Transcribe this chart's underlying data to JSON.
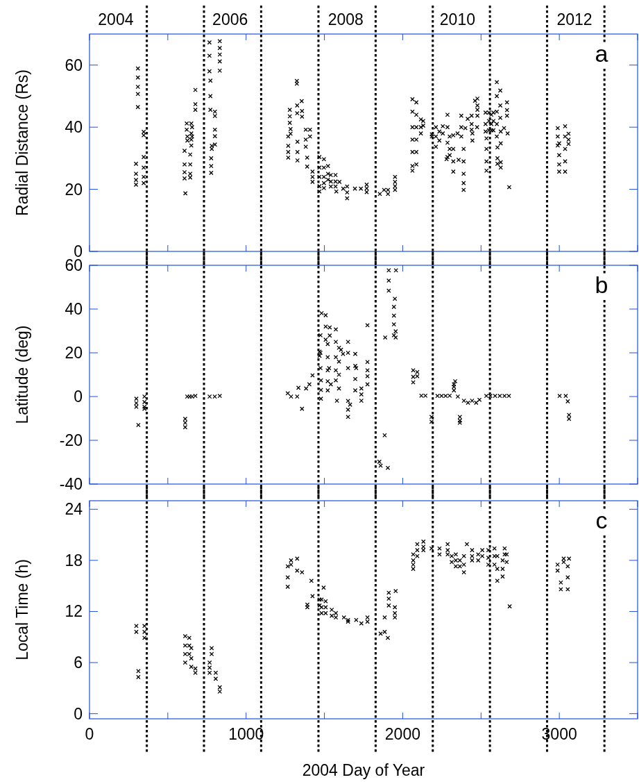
{
  "chart_data": [
    {
      "type": "scatter",
      "ylabel": "Radial Distance (Rs)",
      "xlim": [
        0,
        3500
      ],
      "xticks": [
        0,
        {
          "value": 500,
          "label": null
        },
        1000,
        {
          "value": 1500,
          "label": null
        },
        2000,
        {
          "value": 2500,
          "label": null
        },
        3000,
        {
          "value": 3500,
          "label": null
        }
      ],
      "x2lim": [
        "2004-01-01",
        "2013-08-01"
      ],
      "x2ticks": [
        {
          "value": "2004-06-17",
          "label": "2004"
        },
        {
          "value": "2006-06-17",
          "label": "2006"
        },
        {
          "value": "2008-06-24",
          "label": "2008"
        },
        {
          "value": "2010-06-08",
          "label": "2010"
        },
        {
          "value": "2012-06-24",
          "label": "2012"
        }
      ],
      "ylim": [
        0,
        70
      ],
      "yticks": [
        0,
        20,
        40,
        60
      ],
      "tick_labels": "y",
      "marker": "cross",
      "annotations": [
        "a"
      ],
      "ref_lines": [
        {
          "axis": "x",
          "value": 366,
          "line_style": "dotted",
          "color": "#000000"
        },
        {
          "axis": "x",
          "value": 731,
          "line_style": "dotted",
          "color": "#000000"
        },
        {
          "axis": "x",
          "value": 1096,
          "line_style": "dotted",
          "color": "#000000"
        },
        {
          "axis": "x",
          "value": 1462,
          "line_style": "dotted",
          "color": "#000000"
        },
        {
          "axis": "x",
          "value": 1827,
          "line_style": "dotted",
          "color": "#000000"
        },
        {
          "axis": "x",
          "value": 2192,
          "line_style": "dotted",
          "color": "#000000"
        },
        {
          "axis": "x",
          "value": 2557,
          "line_style": "dotted",
          "color": "#000000"
        },
        {
          "axis": "x",
          "value": 2922,
          "line_style": "dotted",
          "color": "#000000"
        },
        {
          "axis": "x",
          "value": 3288,
          "line_style": "dotted",
          "color": "#000000"
        }
      ],
      "series": [
        {
          "color": "#000000",
          "x": [
            309,
            309,
            309,
            309,
            309,
            297,
            297,
            297,
            297,
            346,
            346,
            346,
            346,
            346,
            346,
            612,
            607,
            607,
            607,
            607,
            621,
            621,
            625,
            625,
            643,
            643,
            643,
            643,
            650,
            650,
            650,
            650,
            655,
            655,
            676,
            676,
            676,
            766,
            766,
            766,
            772,
            772,
            772,
            777,
            777,
            777,
            781,
            781,
            801,
            801,
            801,
            801,
            801,
            832,
            832,
            832,
            832,
            832,
            1269,
            1269,
            1269,
            1269,
            1279,
            1279,
            1279,
            1284,
            1284,
            1324,
            1324,
            1328,
            1328,
            1328,
            1326,
            1326,
            1355,
            1357,
            1357,
            1381,
            1381,
            1381,
            1390,
            1390,
            1408,
            1408,
            1424,
            1424,
            1424,
            1468,
            1468,
            1468,
            1468,
            1468,
            1497,
            1497,
            1497,
            1497,
            1497,
            1523,
            1523,
            1523,
            1541,
            1541,
            1541,
            1571,
            1571,
            1571,
            1576,
            1596,
            1620,
            1645,
            1645,
            1645,
            1695,
            1733,
            1770,
            1770,
            1770,
            1854,
            1881,
            1906,
            1906,
            1951,
            1951,
            1951,
            1951,
            2062,
            2062,
            2062,
            2062,
            2062,
            2062,
            2062,
            2087,
            2087,
            2087,
            2087,
            2087,
            2087,
            2116,
            2116,
            2116,
            2131,
            2131,
            2186,
            2186,
            2212,
            2212,
            2212,
            2234,
            2234,
            2256,
            2256,
            2286,
            2286,
            2286,
            2286,
            2280,
            2300,
            2300,
            2300,
            2323,
            2323,
            2323,
            2323,
            2357,
            2350,
            2374,
            2374,
            2374,
            2389,
            2389,
            2389,
            2389,
            2389,
            2400,
            2415,
            2440,
            2440,
            2440,
            2445,
            2445,
            2462,
            2477,
            2477,
            2477,
            2477,
            2475,
            2529,
            2529,
            2529,
            2535,
            2535,
            2535,
            2535,
            2551,
            2551,
            2551,
            2566,
            2566,
            2566,
            2579,
            2579,
            2579,
            2601,
            2601,
            2601,
            2601,
            2601,
            2605,
            2605,
            2605,
            2623,
            2623,
            2623,
            2626,
            2626,
            2626,
            2626,
            2647,
            2666,
            2666,
            2666,
            2670,
            2680,
            2990,
            2990,
            2990,
            2999,
            2999,
            2999,
            2999,
            3037,
            3037,
            3037,
            3037,
            3037,
            3059,
            3059,
            3059
          ],
          "values": [
            58.9,
            56,
            53,
            50.7,
            46.5,
            28.2,
            25,
            23,
            21.5,
            38.5,
            37.4,
            30.4,
            27,
            24,
            22,
            18.7,
            32.4,
            28,
            25.5,
            23.5,
            41.2,
            39.2,
            37,
            35.7,
            31.2,
            28,
            25,
            23.8,
            41.2,
            38,
            36,
            34.1,
            40,
            37,
            52,
            47.4,
            45.6,
            67.3,
            63,
            58,
            55,
            50,
            45.6,
            30,
            27.5,
            25.3,
            34,
            33,
            45,
            43.6,
            39.2,
            37.1,
            34.4,
            67.7,
            65.5,
            63.4,
            61.2,
            58.2,
            37,
            34,
            32,
            30.2,
            45.6,
            43.5,
            41.4,
            39.4,
            37.9,
            54.9,
            54,
            35.3,
            32,
            29.3,
            47,
            44.5,
            48.4,
            45.2,
            43.4,
            39.2,
            36,
            33.7,
            30.2,
            27.3,
            39.2,
            37,
            25.7,
            24,
            22.4,
            30.4,
            27,
            24,
            21,
            19.3,
            29.7,
            27,
            24,
            22,
            20.4,
            27.5,
            25,
            23.1,
            24.6,
            22.5,
            20.9,
            24.6,
            22.5,
            20.9,
            19.3,
            22.4,
            20.2,
            20.9,
            19,
            17.1,
            20.2,
            20.2,
            21.5,
            20.3,
            19.1,
            18.5,
            19.8,
            19.8,
            18.5,
            24,
            22.4,
            21,
            19.8,
            49,
            45,
            40,
            36,
            32,
            27.5,
            26,
            48,
            44,
            40,
            36,
            32,
            28,
            42.5,
            40,
            38,
            42,
            40.5,
            37.7,
            37,
            40,
            37,
            33.7,
            38.6,
            35.7,
            40.3,
            38,
            44,
            40,
            35,
            30.4,
            29.7,
            37,
            33,
            31,
            37.4,
            33,
            29,
            25.7,
            29.5,
            38,
            43.7,
            40,
            37,
            33,
            29,
            25,
            22,
            19.8,
            39.7,
            42.7,
            43.7,
            41,
            39.2,
            38,
            35.7,
            48.5,
            49.2,
            47,
            45.6,
            43.7,
            40,
            44.7,
            41,
            38.6,
            36.4,
            33,
            29,
            26,
            44.7,
            42,
            39,
            44,
            41,
            39,
            44.7,
            42,
            39,
            54.5,
            50,
            45,
            41,
            37,
            33.5,
            30,
            28.2,
            51.8,
            47,
            43,
            38.6,
            34.8,
            28.7,
            27,
            39.7,
            48,
            45.5,
            43.7,
            38,
            20.7,
            39.7,
            37,
            34.1,
            34.8,
            31,
            28,
            25.7,
            40.3,
            37,
            33,
            29,
            25.7,
            37.9,
            36,
            34.6
          ]
        }
      ]
    },
    {
      "type": "scatter",
      "ylabel": "Latitude (deg)",
      "xlim": [
        0,
        3500
      ],
      "xticks": [
        0,
        {
          "value": 500,
          "label": null
        },
        1000,
        {
          "value": 1500,
          "label": null
        },
        2000,
        {
          "value": 2500,
          "label": null
        },
        3000,
        {
          "value": 3500,
          "label": null
        }
      ],
      "ylim": [
        -40,
        60
      ],
      "yticks": [
        -40,
        -20,
        0,
        20,
        40,
        60
      ],
      "tick_labels": "y",
      "marker": "cross",
      "annotations": [
        "b"
      ],
      "ref_lines": [
        {
          "axis": "x",
          "value": 366,
          "line_style": "dotted",
          "color": "#000000"
        },
        {
          "axis": "x",
          "value": 731,
          "line_style": "dotted",
          "color": "#000000"
        },
        {
          "axis": "x",
          "value": 1096,
          "line_style": "dotted",
          "color": "#000000"
        },
        {
          "axis": "x",
          "value": 1462,
          "line_style": "dotted",
          "color": "#000000"
        },
        {
          "axis": "x",
          "value": 1827,
          "line_style": "dotted",
          "color": "#000000"
        },
        {
          "axis": "x",
          "value": 2192,
          "line_style": "dotted",
          "color": "#000000"
        },
        {
          "axis": "x",
          "value": 2557,
          "line_style": "dotted",
          "color": "#000000"
        },
        {
          "axis": "x",
          "value": 2922,
          "line_style": "dotted",
          "color": "#000000"
        },
        {
          "axis": "x",
          "value": 3288,
          "line_style": "dotted",
          "color": "#000000"
        }
      ],
      "series": [
        {
          "color": "#000000",
          "x": [
            299,
            299,
            299,
            312,
            351,
            351,
            351,
            351,
            611,
            611,
            611,
            624,
            640,
            655,
            676,
            767,
            800,
            832,
            1266,
            1287,
            1326,
            1357,
            1334,
            1383,
            1404,
            1424,
            1469,
            1469,
            1482,
            1475,
            1475,
            1475,
            1478,
            1478,
            1478,
            1508,
            1508,
            1508,
            1521,
            1521,
            1521,
            1521,
            1521,
            1530,
            1534,
            1534,
            1541,
            1573,
            1573,
            1573,
            1573,
            1573,
            1580,
            1593,
            1593,
            1593,
            1593,
            1606,
            1619,
            1651,
            1651,
            1651,
            1651,
            1651,
            1651,
            1664,
            1697,
            1697,
            1697,
            1697,
            1703,
            1736,
            1736,
            1736,
            1775,
            1775,
            1775,
            1775,
            1775,
            1859,
            1851,
            1885,
            1888,
            1905,
            1911,
            1911,
            1911,
            1944,
            1944,
            1944,
            1944,
            1950,
            1957,
            1955,
            1955,
            2067,
            2067,
            2067,
            2093,
            2093,
            2119,
            2145,
            2184,
            2184,
            2222,
            2248,
            2274,
            2300,
            2327,
            2327,
            2327,
            2335,
            2352,
            2365,
            2365,
            2365,
            2391,
            2417,
            2443,
            2469,
            2490,
            2534,
            2560,
            2590,
            2620,
            2650,
            2678,
            3002,
            3041,
            3054,
            3062,
            3062
          ],
          "values": [
            -1,
            -3,
            -4.7,
            -13,
            0,
            -2.5,
            -4.7,
            -5.6,
            -10.2,
            -12,
            -14,
            0,
            0,
            0,
            0.3,
            0,
            0,
            0.3,
            1.5,
            0,
            0,
            -5.6,
            4,
            3.7,
            5.6,
            9.7,
            20.5,
            18.6,
            38.1,
            28,
            20,
            13,
            7.4,
            3,
            -1,
            37.2,
            32,
            26,
            24,
            18,
            12,
            7,
            2.8,
            13,
            31.6,
            27.9,
            5.6,
            30.7,
            25,
            18,
            12,
            7.4,
            -1.9,
            22.3,
            16,
            10,
            3.7,
            21.4,
            19.5,
            25,
            20,
            13,
            -2,
            -6,
            -9.3,
            -3.7,
            19.5,
            14,
            8,
            2.8,
            13,
            3.7,
            1,
            -1.9,
            32.6,
            15.8,
            12,
            9.3,
            5.6,
            -31.6,
            -29.8,
            -17.7,
            27,
            -32.6,
            57.7,
            53,
            48.4,
            41,
            37,
            33,
            28,
            44.7,
            57.7,
            29.8,
            27,
            12,
            9,
            6.5,
            11.2,
            9.3,
            0.4,
            0.4,
            -9.3,
            -11.5,
            0.3,
            0.3,
            0.3,
            0.4,
            2.8,
            4.5,
            5.6,
            7,
            0,
            -9.3,
            -11,
            -12,
            -1.9,
            -2.8,
            -1.9,
            -2.8,
            -1.5,
            0.3,
            0.3,
            0.3,
            0.3,
            0.3,
            0.3,
            0.3,
            0.3,
            -2.2,
            -8.4,
            -10.2
          ]
        }
      ]
    },
    {
      "type": "scatter",
      "ylabel": "Local Time (h)",
      "xlabel": "2004 Day of Year",
      "xlim": [
        0,
        3500
      ],
      "xticks": [
        0,
        {
          "value": 500,
          "label": null
        },
        1000,
        {
          "value": 1500,
          "label": null
        },
        2000,
        {
          "value": 2500,
          "label": null
        },
        3000,
        {
          "value": 3500,
          "label": null
        }
      ],
      "ylim": [
        -0.6,
        25
      ],
      "yticks": [
        0,
        6,
        12,
        18,
        24
      ],
      "marker": "cross",
      "annotations": [
        "c"
      ],
      "ref_lines": [
        {
          "axis": "x",
          "value": 366,
          "line_style": "dotted",
          "color": "#000000"
        },
        {
          "axis": "x",
          "value": 731,
          "line_style": "dotted",
          "color": "#000000"
        },
        {
          "axis": "x",
          "value": 1096,
          "line_style": "dotted",
          "color": "#000000"
        },
        {
          "axis": "x",
          "value": 1462,
          "line_style": "dotted",
          "color": "#000000"
        },
        {
          "axis": "x",
          "value": 1827,
          "line_style": "dotted",
          "color": "#000000"
        },
        {
          "axis": "x",
          "value": 2192,
          "line_style": "dotted",
          "color": "#000000"
        },
        {
          "axis": "x",
          "value": 2557,
          "line_style": "dotted",
          "color": "#000000"
        },
        {
          "axis": "x",
          "value": 2922,
          "line_style": "dotted",
          "color": "#000000"
        },
        {
          "axis": "x",
          "value": 3288,
          "line_style": "dotted",
          "color": "#000000"
        }
      ],
      "series": [
        {
          "color": "#000000",
          "x": [
            299,
            299,
            312,
            312,
            351,
            351,
            351,
            611,
            611,
            611,
            611,
            637,
            637,
            637,
            650,
            650,
            650,
            676,
            676,
            767,
            767,
            767,
            780,
            780,
            806,
            806,
            832,
            832,
            1266,
            1266,
            1266,
            1287,
            1287,
            1326,
            1326,
            1357,
            1391,
            1391,
            1424,
            1417,
            1469,
            1469,
            1495,
            1482,
            1482,
            1482,
            1508,
            1508,
            1508,
            1547,
            1547,
            1573,
            1573,
            1625,
            1651,
            1651,
            1703,
            1736,
            1775,
            1775,
            1859,
            1885,
            1885,
            1905,
            1911,
            1911,
            1911,
            1955,
            1950,
            1950,
            1950,
            2067,
            2067,
            2067,
            2067,
            2093,
            2093,
            2093,
            2132,
            2132,
            2132,
            2184,
            2235,
            2235,
            2287,
            2287,
            2287,
            2313,
            2313,
            2339,
            2339,
            2339,
            2365,
            2365,
            2391,
            2391,
            2391,
            2410,
            2443,
            2443,
            2443,
            2482,
            2482,
            2508,
            2508,
            2547,
            2547,
            2547,
            2586,
            2586,
            2586,
            2604,
            2604,
            2604,
            2638,
            2638,
            2638,
            2651,
            2651,
            2664,
            2664,
            2683,
            2989,
            2989,
            3010,
            3010,
            3028,
            3028,
            3054,
            3054,
            3054,
            3062
          ],
          "values": [
            10.3,
            9.6,
            5,
            4.3,
            10.3,
            9.6,
            8.9,
            9.1,
            8,
            7,
            6,
            8.9,
            8,
            7,
            7.7,
            6.5,
            5.5,
            5.3,
            4.8,
            6,
            5.4,
            4.8,
            7.7,
            7,
            4.8,
            4.1,
            3.1,
            2.6,
            17.3,
            16,
            14.9,
            18,
            17.5,
            18.2,
            16.8,
            16.6,
            12.8,
            12.5,
            13.8,
            15.6,
            13.4,
            12.7,
            14.8,
            13.4,
            12.5,
            11.8,
            13.2,
            12.5,
            11.8,
            12.2,
            11.5,
            11.8,
            11.3,
            11.3,
            11,
            10.8,
            11,
            10.6,
            11.3,
            10.8,
            9.4,
            9.6,
            11.3,
            8.9,
            14.2,
            13.5,
            12.7,
            14.4,
            12.5,
            11.8,
            11.3,
            18.7,
            18,
            17.5,
            17,
            19.9,
            19.2,
            18.5,
            20.2,
            19.6,
            19.2,
            19.4,
            19.4,
            18.7,
            19.9,
            19.2,
            18.7,
            18.5,
            17.8,
            18.7,
            18,
            17.3,
            18,
            17.3,
            18.5,
            17.5,
            16.6,
            19.9,
            19.2,
            18.5,
            18,
            18.7,
            18,
            19.2,
            18.5,
            19.2,
            18.3,
            17.5,
            19.4,
            18.5,
            17.5,
            18.5,
            17,
            15.6,
            18,
            17,
            16.1,
            19.4,
            18.7,
            18.7,
            17.8,
            12.6,
            17.5,
            16.8,
            15.4,
            14.6,
            18.2,
            17.8,
            17.3,
            16,
            14.6,
            18.2
          ]
        }
      ]
    }
  ]
}
